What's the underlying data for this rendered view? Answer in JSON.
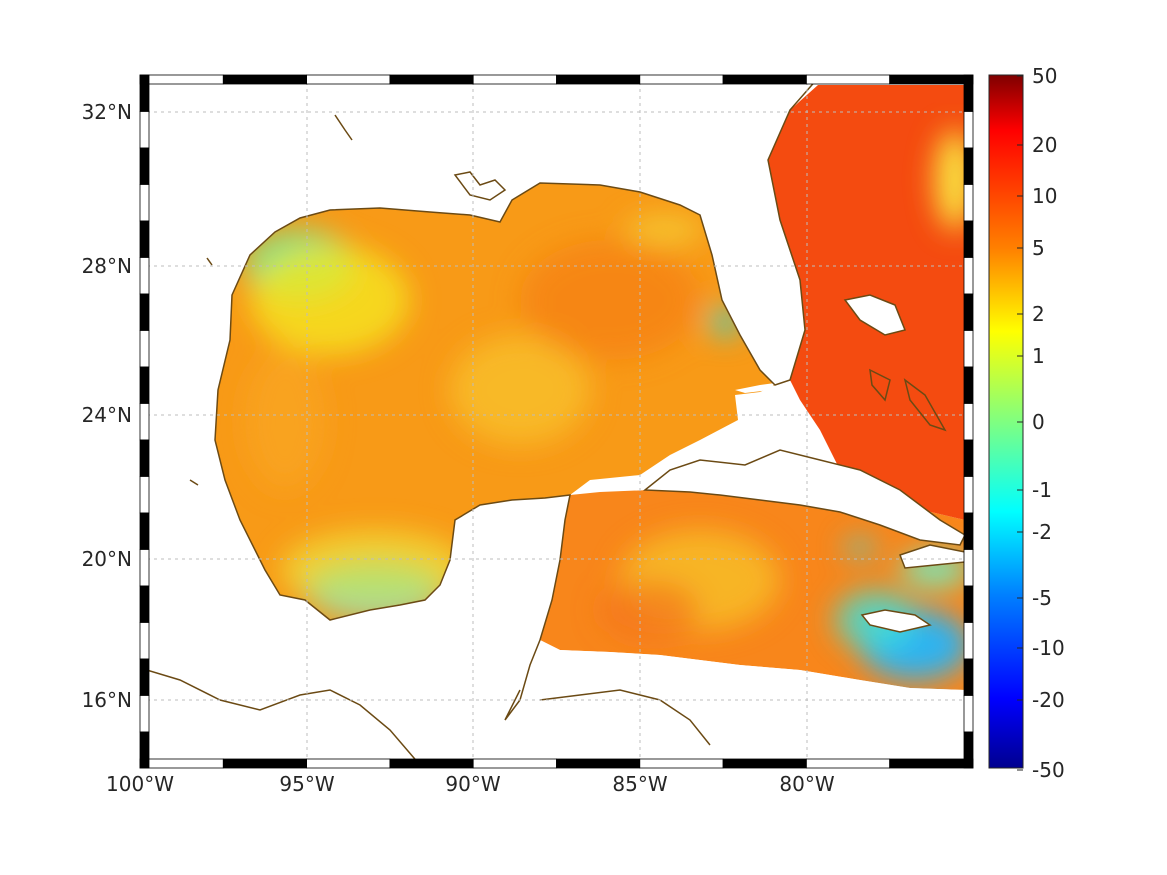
{
  "map": {
    "extent": {
      "lon_min": -100,
      "lon_max": -75,
      "lat_min": 14,
      "lat_max": 33
    },
    "lat_ticks": [
      {
        "lat": 32,
        "label": "32°N"
      },
      {
        "lat": 28,
        "label": "28°N"
      },
      {
        "lat": 24,
        "label": "24°N"
      },
      {
        "lat": 20,
        "label": "20°N"
      },
      {
        "lat": 16,
        "label": "16°N"
      }
    ],
    "lon_ticks": [
      {
        "lon": -100,
        "label": "100°W"
      },
      {
        "lon": -95,
        "label": "95°W"
      },
      {
        "lon": -90,
        "label": "90°W"
      },
      {
        "lon": -85,
        "label": "85°W"
      },
      {
        "lon": -80,
        "label": "80°W"
      }
    ],
    "grid": true,
    "coastline_color": "#6b4a14",
    "land_color": "#ffffff"
  },
  "colorbar": {
    "position": "right",
    "scale": "symmetric-log",
    "range": [
      -50,
      50
    ],
    "ticks": [
      "50",
      "20",
      "10",
      "5",
      "2",
      "1",
      "0",
      "-1",
      "-2",
      "-5",
      "-10",
      "-20",
      "-50"
    ],
    "colors": [
      "#7f0000",
      "#ff0000",
      "#ff8000",
      "#ffff00",
      "#80ff80",
      "#00ffff",
      "#0080ff",
      "#0000ff",
      "#00008f"
    ]
  }
}
